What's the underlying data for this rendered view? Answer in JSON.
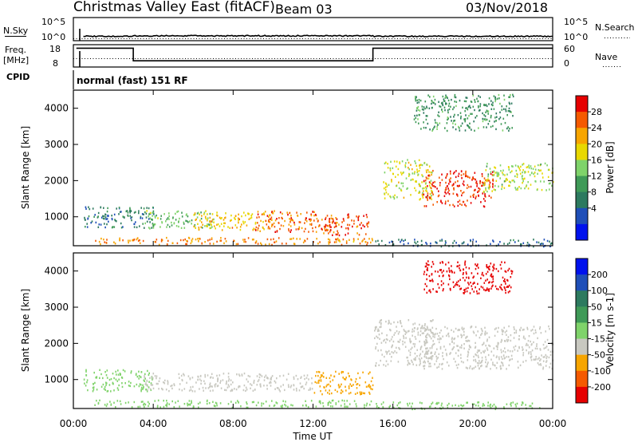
{
  "header": {
    "radar": "Christmas Valley East (fitACF)",
    "beam": "Beam 03",
    "date": "03/Nov/2018"
  },
  "params": {
    "nsky_label": "N.Sky",
    "nsearch_label": "N.Search",
    "freq_label_1": "Freq.",
    "freq_label_2": "[MHz]",
    "nave_label": "Nave",
    "cpid_label": "CPID",
    "cpid_value": "normal (fast) 151 RF",
    "noise_ticks": [
      "10^5",
      "10^0"
    ],
    "freq_ticks": [
      "18",
      "8"
    ],
    "nave_ticks": [
      "60",
      "0"
    ]
  },
  "chart_data": [
    {
      "type": "line",
      "name": "noise",
      "ylim_log10": [
        0,
        5
      ],
      "nsky_log10_level": 0.9,
      "nsearch_log10_level": 0.7
    },
    {
      "type": "line",
      "name": "frequency-nave",
      "freq_ylim": [
        8,
        18
      ],
      "freq_segments": [
        {
          "start_hour": 0.15,
          "end_hour": 3.0,
          "value": 16.4
        },
        {
          "start_hour": 3.0,
          "end_hour": 15.0,
          "value": 10.8
        },
        {
          "start_hour": 15.0,
          "end_hour": 24.0,
          "value": 16.4
        }
      ],
      "nave_value": 16
    },
    {
      "type": "heatmap",
      "name": "power",
      "ylabel": "Slant Range [km]",
      "y_ticks": [
        "1000",
        "2000",
        "3000",
        "4000"
      ],
      "ylim": [
        200,
        4500
      ],
      "colorbar_label": "Power [dB]",
      "colorbar_ticks": [
        "28",
        "24",
        "20",
        "16",
        "12",
        "8",
        "4"
      ],
      "colorbar_colors": [
        "#e60000",
        "#f55a00",
        "#f7a500",
        "#e8d800",
        "#7fd36a",
        "#3f9a57",
        "#2d7a5f",
        "#1f4fb8",
        "#0012ee"
      ],
      "regions": [
        {
          "t0": 0.5,
          "t1": 4.0,
          "r0": 700,
          "r1": 1300,
          "level": 0.25
        },
        {
          "t0": 3.5,
          "t1": 7.0,
          "r0": 700,
          "r1": 1200,
          "level": 0.45
        },
        {
          "t0": 6.0,
          "t1": 10.0,
          "r0": 650,
          "r1": 1150,
          "level": 0.7
        },
        {
          "t0": 9.0,
          "t1": 13.0,
          "r0": 600,
          "r1": 1200,
          "level": 0.85
        },
        {
          "t0": 12.5,
          "t1": 14.8,
          "r0": 500,
          "r1": 1100,
          "level": 0.9
        },
        {
          "t0": 1.0,
          "t1": 15.0,
          "r0": 250,
          "r1": 450,
          "level": 0.8
        },
        {
          "t0": 15.5,
          "t1": 18.0,
          "r0": 1500,
          "r1": 2600,
          "level": 0.6
        },
        {
          "t0": 17.5,
          "t1": 21.0,
          "r0": 1300,
          "r1": 2300,
          "level": 0.95
        },
        {
          "t0": 20.5,
          "t1": 24.0,
          "r0": 1700,
          "r1": 2500,
          "level": 0.55
        },
        {
          "t0": 17.0,
          "t1": 22.0,
          "r0": 3400,
          "r1": 4400,
          "level": 0.35
        },
        {
          "t0": 15.0,
          "t1": 24.0,
          "r0": 200,
          "r1": 400,
          "level": 0.2
        }
      ]
    },
    {
      "type": "heatmap",
      "name": "velocity",
      "ylabel": "Slant Range [km]",
      "xlabel": "Time UT",
      "x_ticks": [
        "00:00",
        "04:00",
        "08:00",
        "12:00",
        "16:00",
        "20:00",
        "00:00"
      ],
      "xlim_hours": [
        0,
        24
      ],
      "y_ticks": [
        "1000",
        "2000",
        "3000",
        "4000"
      ],
      "ylim": [
        200,
        4500
      ],
      "colorbar_label": "Velocity [m s-1]",
      "colorbar_ticks": [
        "200",
        "100",
        "50",
        "15",
        "-15",
        "-50",
        "-100",
        "-200"
      ],
      "colorbar_colors": [
        "#0012ee",
        "#1f4fb8",
        "#2d7a5f",
        "#3f9a57",
        "#7fd36a",
        "#c8c8c0",
        "#f7a500",
        "#f55a00",
        "#e60000"
      ],
      "regions": [
        {
          "t0": 0.5,
          "t1": 4.0,
          "r0": 700,
          "r1": 1300,
          "color": "#7fd36a"
        },
        {
          "t0": 3.5,
          "t1": 12.0,
          "r0": 700,
          "r1": 1200,
          "color": "#c8c8c0"
        },
        {
          "t0": 12.0,
          "t1": 15.0,
          "r0": 600,
          "r1": 1250,
          "color": "#f7a500"
        },
        {
          "t0": 1.0,
          "t1": 15.0,
          "r0": 250,
          "r1": 450,
          "color": "#7fd36a"
        },
        {
          "t0": 15.0,
          "t1": 18.0,
          "r0": 1400,
          "r1": 2700,
          "color": "#c8c8c0"
        },
        {
          "t0": 17.5,
          "t1": 24.0,
          "r0": 1300,
          "r1": 2500,
          "color": "#c8c8c0"
        },
        {
          "t0": 17.5,
          "t1": 22.0,
          "r0": 3400,
          "r1": 4300,
          "color": "#e60000"
        },
        {
          "t0": 15.0,
          "t1": 24.0,
          "r0": 200,
          "r1": 400,
          "color": "#7fd36a"
        }
      ]
    }
  ]
}
